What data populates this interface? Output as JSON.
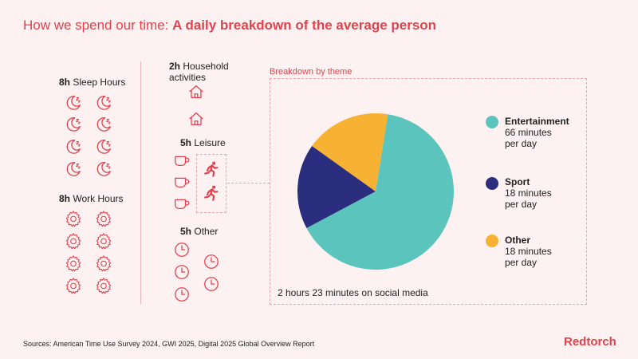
{
  "title": {
    "prefix": "How we spend our time: ",
    "emphasis": "A daily breakdown of the average person"
  },
  "categories": {
    "sleep": {
      "hours": "8h",
      "label": "Sleep Hours"
    },
    "work": {
      "hours": "8h",
      "label": "Work Hours"
    },
    "household": {
      "hours": "2h",
      "label_line1": "Household",
      "label_line2": "activities"
    },
    "leisure": {
      "hours": "5h",
      "label": "Leisure"
    },
    "other": {
      "hours": "5h",
      "label": "Other"
    }
  },
  "icons": {
    "sleep": "moon-icon",
    "work": "gear-icon",
    "household": "house-icon",
    "leisure": "cup-icon",
    "leisure_active": "runner-icon",
    "other": "clock-icon"
  },
  "theme_title": "Breakdown by theme",
  "chart_data": {
    "type": "pie",
    "title": "",
    "unit": "minutes per day",
    "slices": [
      {
        "name": "Entertainment",
        "value": 66,
        "label1": "66 minutes",
        "label2": "per day",
        "color": "#5bc4bd"
      },
      {
        "name": "Sport",
        "value": 18,
        "label1": "18 minutes",
        "label2": "per day",
        "color": "#2b2d7e"
      },
      {
        "name": "Other",
        "value": 18,
        "label1": "18 minutes",
        "label2": "per day",
        "color": "#f7b234"
      }
    ]
  },
  "social": {
    "strong": "2 hours 23 minutes",
    "rest": " on social media"
  },
  "sources": "Sources: American Time Use Survey 2024, GWI 2025, Digital 2025 Global Overview Report",
  "brand": "Redtorch",
  "colors": {
    "accent": "#e0434d",
    "background": "#fdf1f1"
  }
}
